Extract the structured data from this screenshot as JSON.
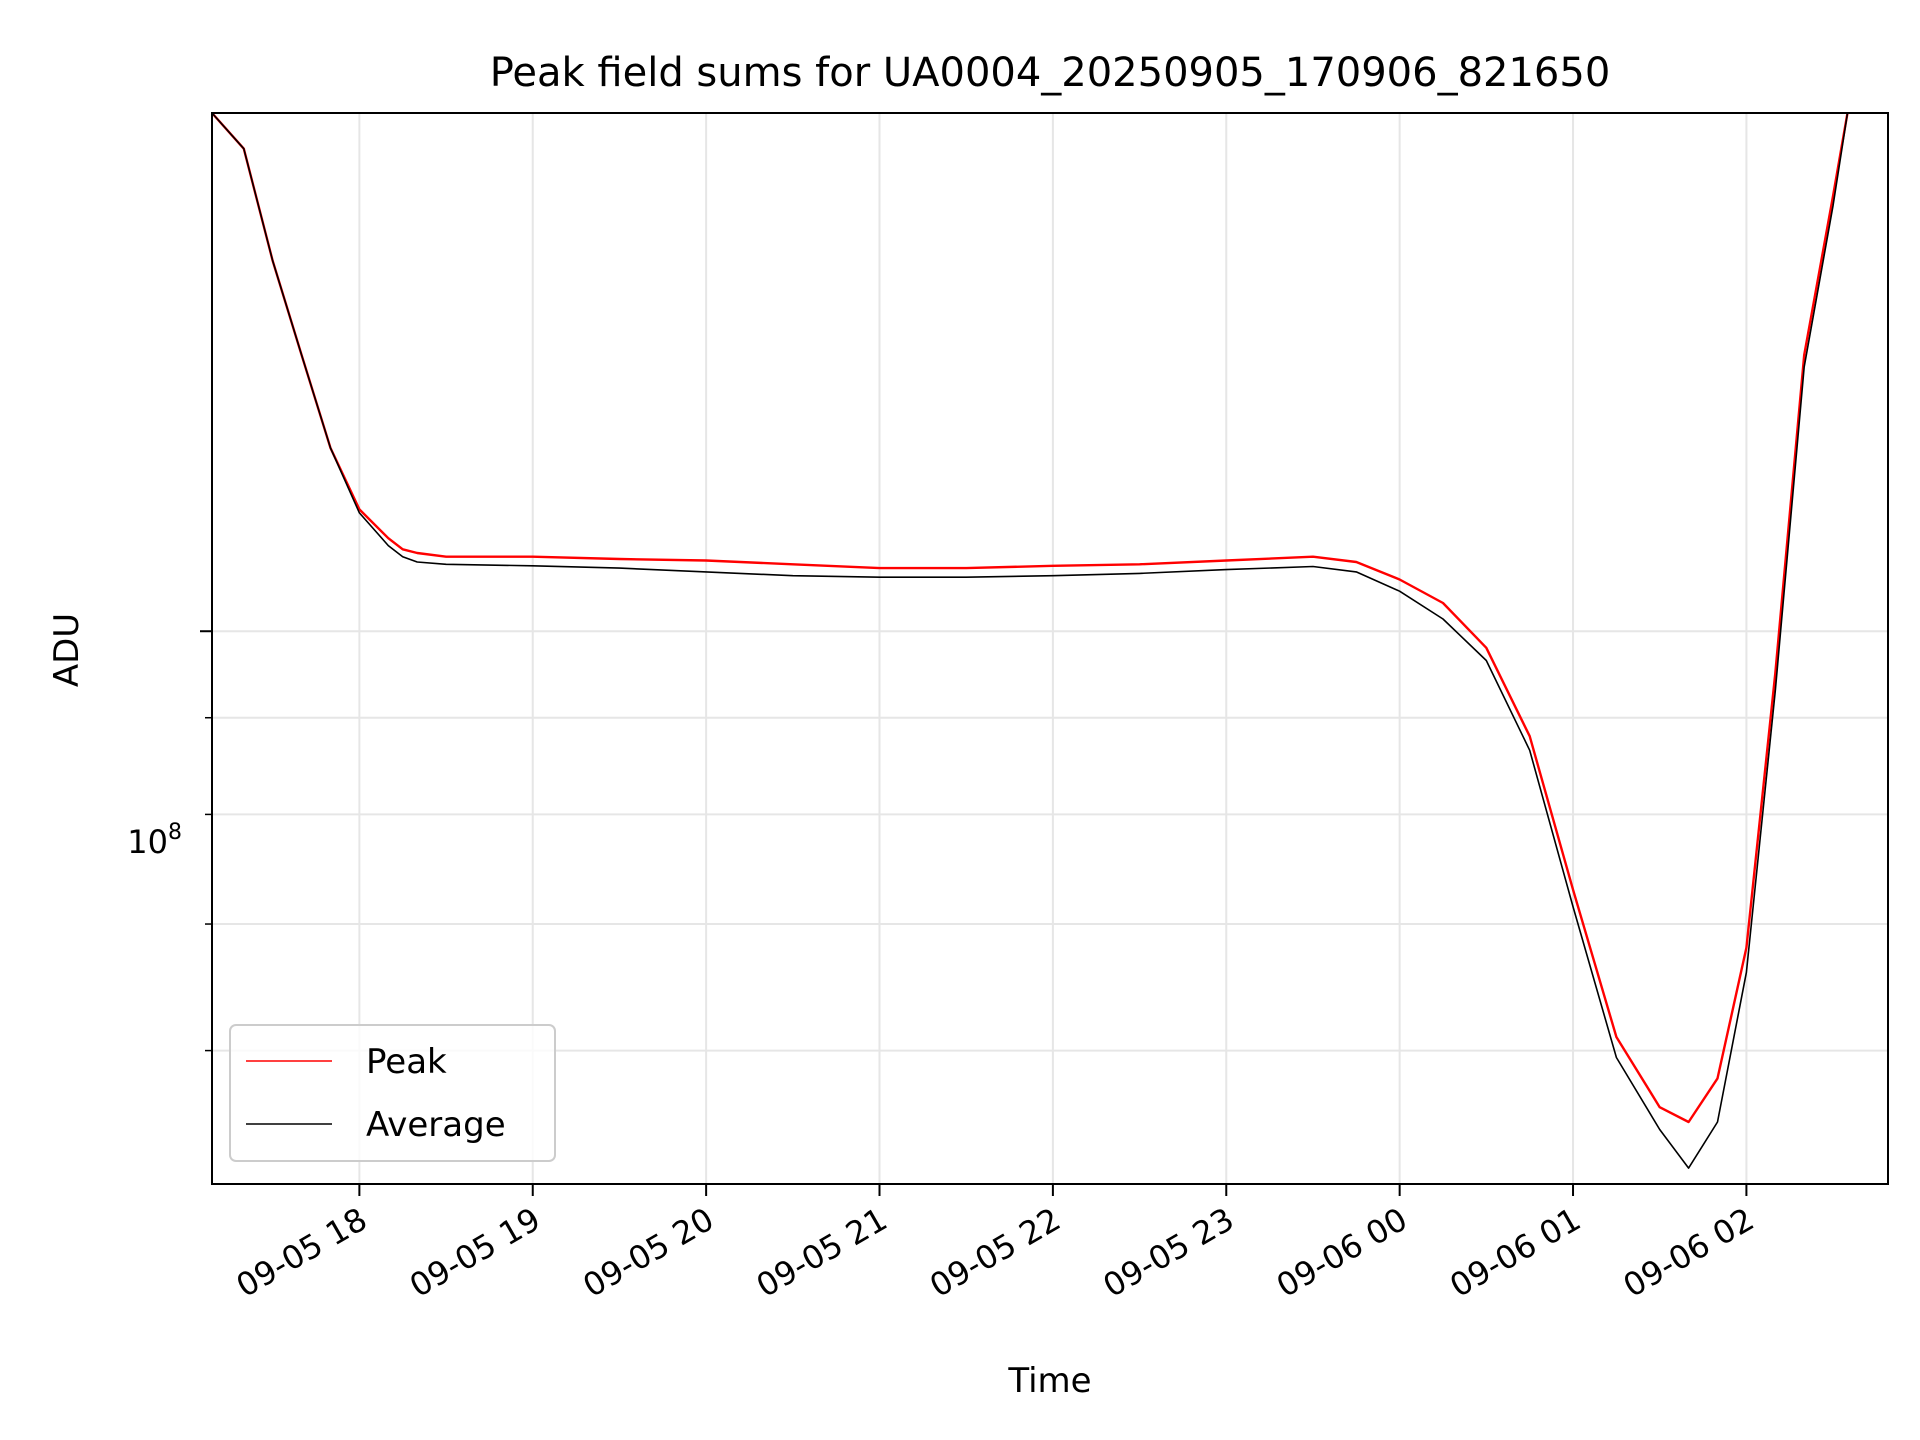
{
  "chart_data": {
    "type": "line",
    "title": "Peak field sums for UA0004_20250905_170906_821650",
    "xlabel": "Time",
    "ylabel": "ADU",
    "y_scale": "log",
    "ylim": [
      51000000,
      188000000
    ],
    "xlim": [
      "2025-09-05 17:09",
      "2025-09-06 02:49"
    ],
    "x_ticks": [
      "09-05 18",
      "09-05 19",
      "09-05 20",
      "09-05 21",
      "09-05 22",
      "09-05 23",
      "09-06 00",
      "09-06 01",
      "09-06 02"
    ],
    "x_tick_times": [
      "2025-09-05 18:00",
      "2025-09-05 19:00",
      "2025-09-05 20:00",
      "2025-09-05 21:00",
      "2025-09-05 22:00",
      "2025-09-05 23:00",
      "2025-09-06 00:00",
      "2025-09-06 01:00",
      "2025-09-06 02:00"
    ],
    "y_major_tick_label": {
      "base": "10",
      "exponent": "8",
      "value": 100000000
    },
    "y_minor_ticks": [
      60000000,
      70000000,
      80000000,
      90000000,
      200000000
    ],
    "grid": true,
    "legend": "lower-left",
    "series": [
      {
        "name": "Peak",
        "color": "#ff0000",
        "x": [
          "2025-09-05 17:09",
          "2025-09-05 17:20",
          "2025-09-05 17:30",
          "2025-09-05 17:40",
          "2025-09-05 17:50",
          "2025-09-05 18:00",
          "2025-09-05 18:10",
          "2025-09-05 18:15",
          "2025-09-05 18:20",
          "2025-09-05 18:30",
          "2025-09-05 19:00",
          "2025-09-05 19:30",
          "2025-09-05 20:00",
          "2025-09-05 20:30",
          "2025-09-05 21:00",
          "2025-09-05 21:30",
          "2025-09-05 22:00",
          "2025-09-05 22:30",
          "2025-09-05 23:00",
          "2025-09-05 23:30",
          "2025-09-05 23:45",
          "2025-09-06 00:00",
          "2025-09-06 00:15",
          "2025-09-06 00:30",
          "2025-09-06 00:45",
          "2025-09-06 01:00",
          "2025-09-06 01:15",
          "2025-09-06 01:30",
          "2025-09-06 01:40",
          "2025-09-06 01:50",
          "2025-09-06 02:00",
          "2025-09-06 02:10",
          "2025-09-06 02:20",
          "2025-09-06 02:30",
          "2025-09-06 02:35"
        ],
        "y": [
          188000000,
          180000000,
          157000000,
          140000000,
          125000000,
          116000000,
          112000000,
          110500000,
          110000000,
          109500000,
          109500000,
          109200000,
          109000000,
          108500000,
          108000000,
          108000000,
          108300000,
          108500000,
          109000000,
          109500000,
          108800000,
          106500000,
          103500000,
          98000000,
          88000000,
          73000000,
          61000000,
          56000000,
          55000000,
          58000000,
          68000000,
          95000000,
          140000000,
          170000000,
          188000000
        ]
      },
      {
        "name": "Average",
        "color": "#000000",
        "x": [
          "2025-09-05 17:09",
          "2025-09-05 17:20",
          "2025-09-05 17:30",
          "2025-09-05 17:40",
          "2025-09-05 17:50",
          "2025-09-05 18:00",
          "2025-09-05 18:10",
          "2025-09-05 18:15",
          "2025-09-05 18:20",
          "2025-09-05 18:30",
          "2025-09-05 19:00",
          "2025-09-05 19:30",
          "2025-09-05 20:00",
          "2025-09-05 20:30",
          "2025-09-05 21:00",
          "2025-09-05 21:30",
          "2025-09-05 22:00",
          "2025-09-05 22:30",
          "2025-09-05 23:00",
          "2025-09-05 23:30",
          "2025-09-05 23:45",
          "2025-09-06 00:00",
          "2025-09-06 00:15",
          "2025-09-06 00:30",
          "2025-09-06 00:45",
          "2025-09-06 01:00",
          "2025-09-06 01:15",
          "2025-09-06 01:30",
          "2025-09-06 01:40",
          "2025-09-06 01:50",
          "2025-09-06 02:00",
          "2025-09-06 02:10",
          "2025-09-06 02:20",
          "2025-09-06 02:30",
          "2025-09-06 02:35"
        ],
        "y": [
          188000000,
          180000000,
          157000000,
          140000000,
          125000000,
          115500000,
          111000000,
          109500000,
          108800000,
          108500000,
          108300000,
          108000000,
          107500000,
          107000000,
          106800000,
          106800000,
          107000000,
          107300000,
          107800000,
          108200000,
          107500000,
          105000000,
          101500000,
          96500000,
          86500000,
          71500000,
          59500000,
          54500000,
          52000000,
          55000000,
          66000000,
          93000000,
          138000000,
          168000000,
          188000000
        ]
      }
    ]
  }
}
